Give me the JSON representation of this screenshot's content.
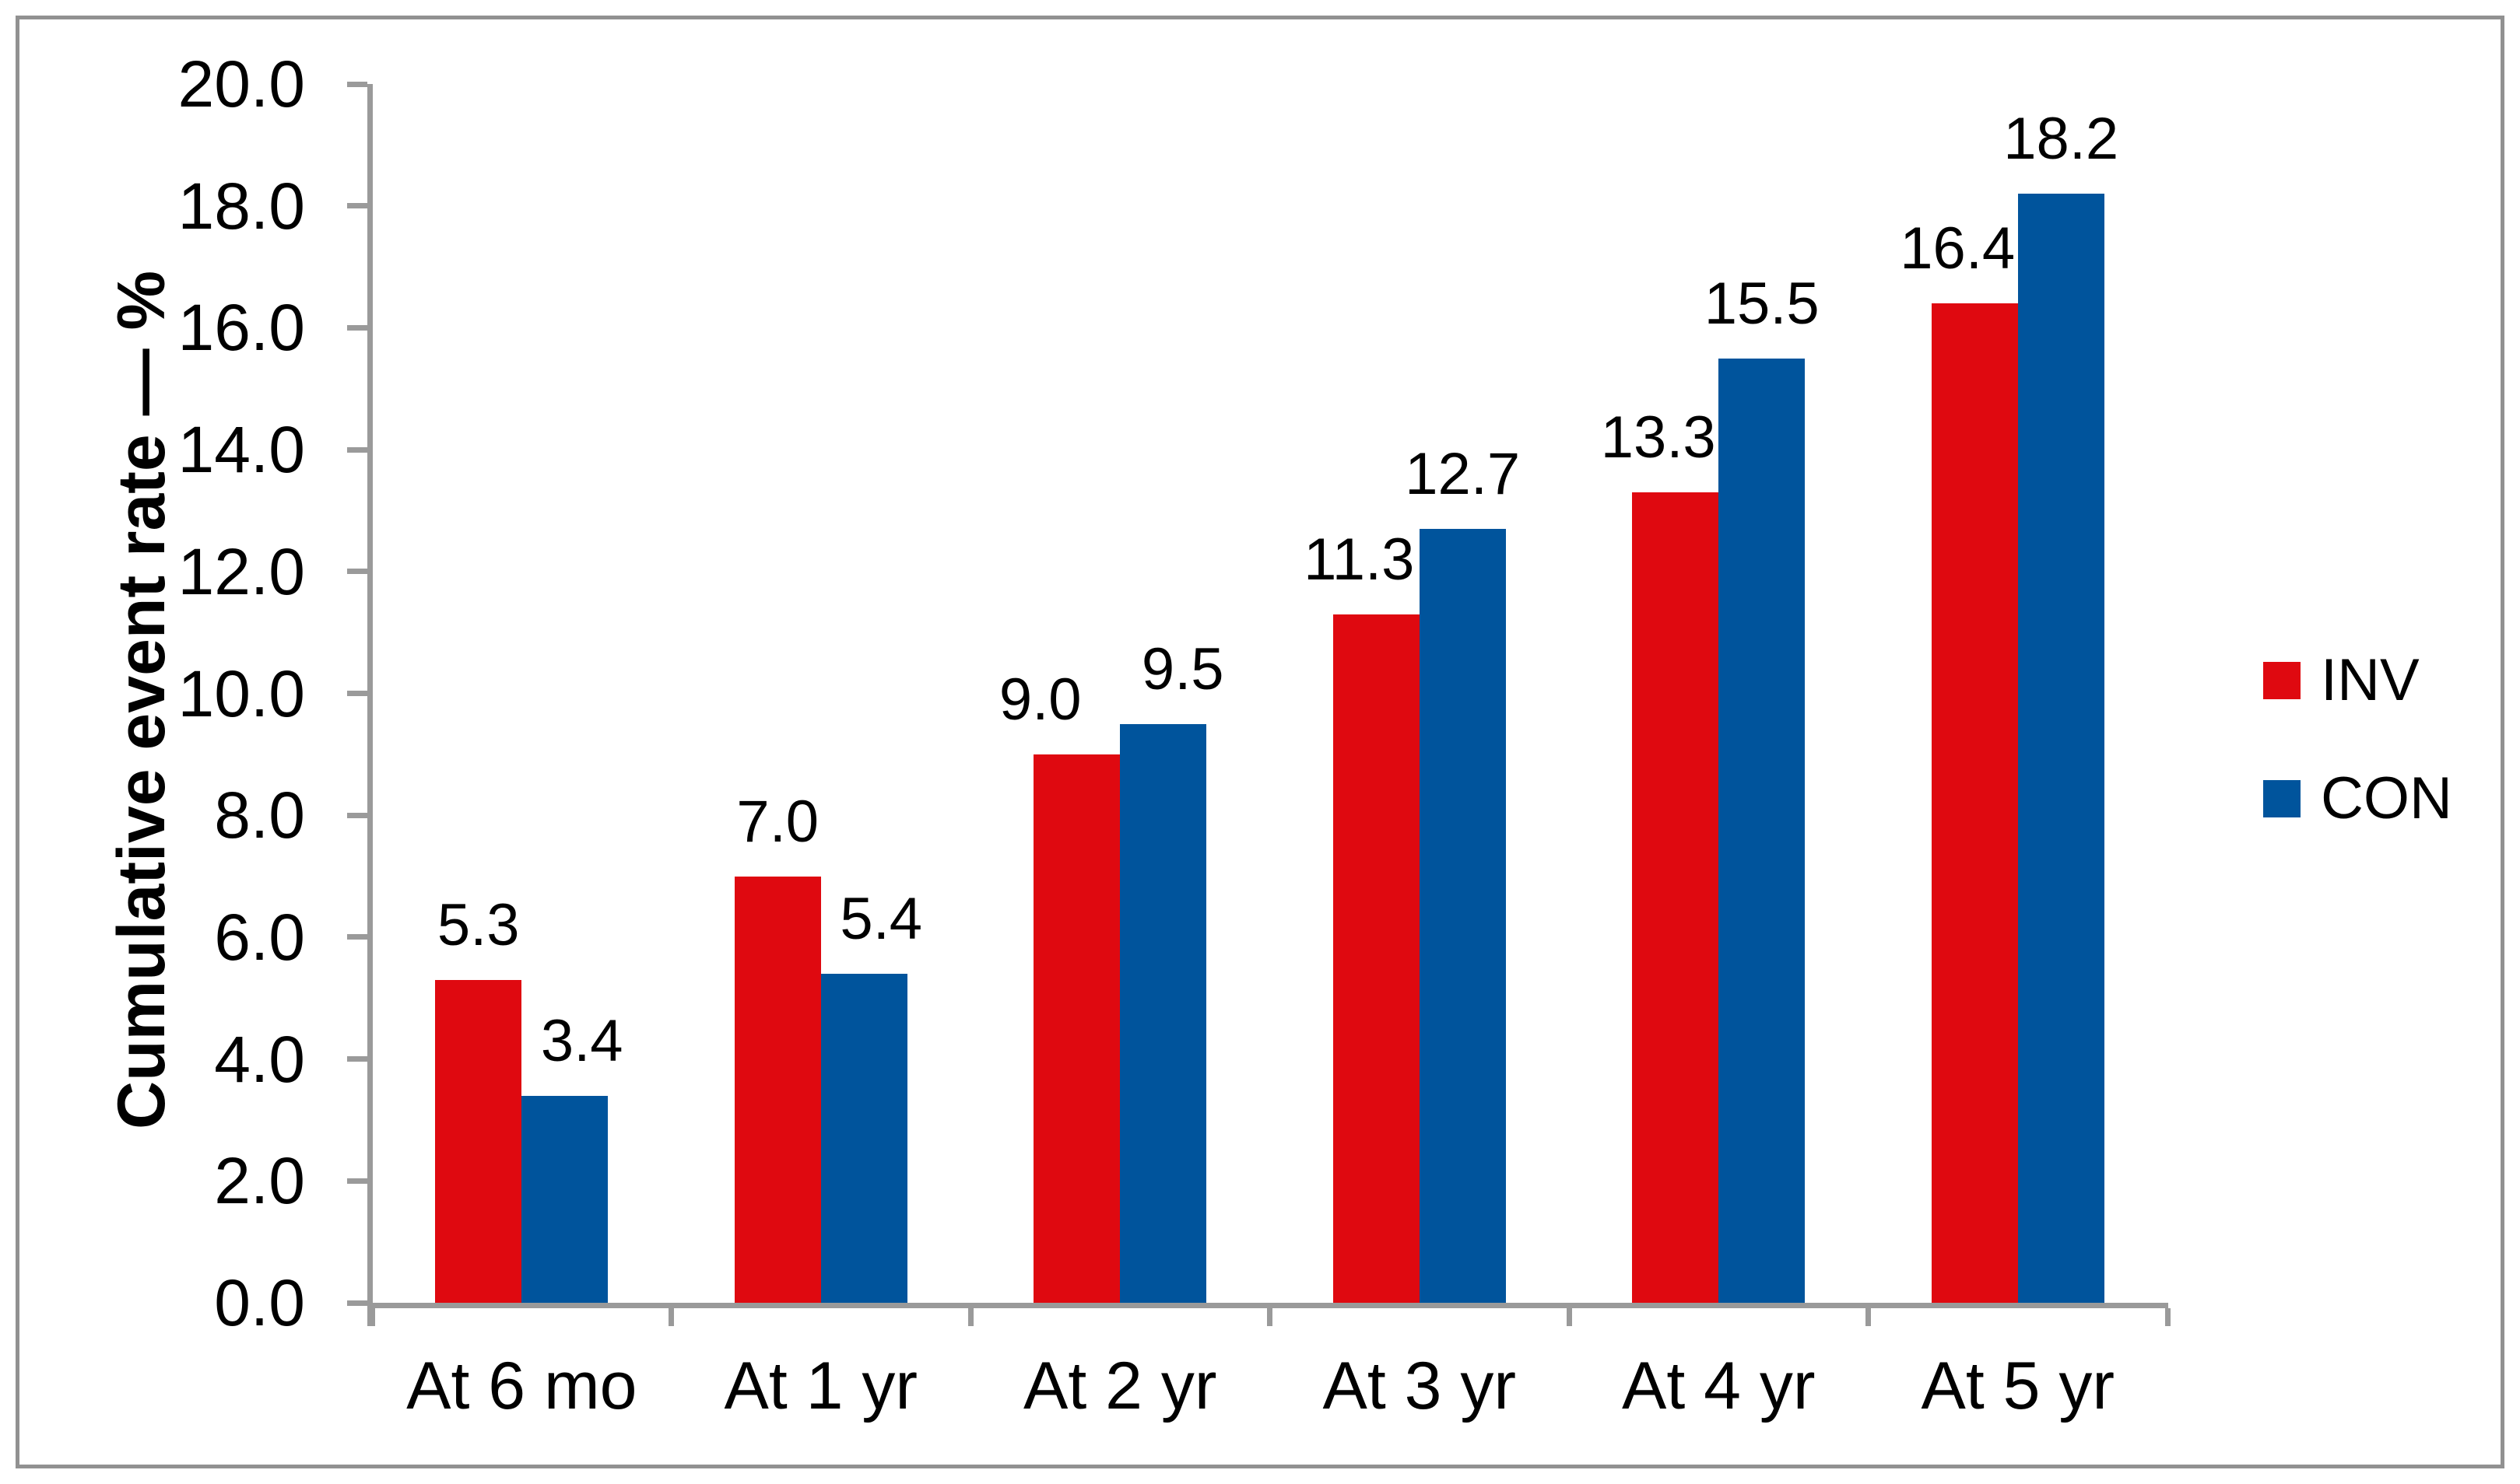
{
  "chart_data": {
    "type": "bar",
    "title": "",
    "categories": [
      "At 6 mo",
      "At 1 yr",
      "At 2 yr",
      "At 3 yr",
      "At 4 yr",
      "At 5 yr"
    ],
    "series": [
      {
        "name": "INV",
        "color": "#df0910",
        "values": [
          5.3,
          7.0,
          9.0,
          11.3,
          13.3,
          16.4
        ]
      },
      {
        "name": "CON",
        "color": "#00549c",
        "values": [
          3.4,
          5.4,
          9.5,
          12.7,
          15.5,
          18.2
        ]
      }
    ],
    "ylabel": "Cumulative event rate — %",
    "xlabel": "",
    "ylim": [
      0,
      20
    ],
    "ytick_step": 2.0,
    "ytick_labels": [
      "0.0",
      "2.0",
      "4.0",
      "6.0",
      "8.0",
      "10.0",
      "12.0",
      "14.0",
      "16.0",
      "18.0",
      "20.0"
    ],
    "value_label_decimals": 1,
    "grid": false,
    "legend_position": "right-middle",
    "legend": [
      "INV",
      "CON"
    ]
  },
  "styles": {
    "background": "#ffffff",
    "axis_color": "#9a9a9a",
    "frame_border_color": "#919191",
    "text_color": "#000000"
  }
}
